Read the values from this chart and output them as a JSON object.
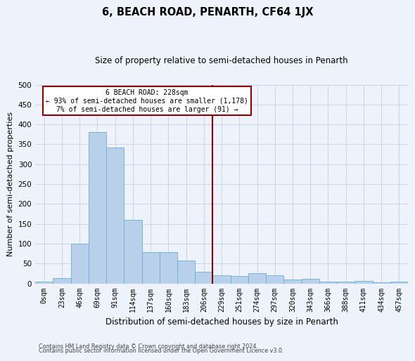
{
  "title": "6, BEACH ROAD, PENARTH, CF64 1JX",
  "subtitle": "Size of property relative to semi-detached houses in Penarth",
  "xlabel": "Distribution of semi-detached houses by size in Penarth",
  "ylabel": "Number of semi-detached properties",
  "bin_labels": [
    "0sqm",
    "23sqm",
    "46sqm",
    "69sqm",
    "91sqm",
    "114sqm",
    "137sqm",
    "160sqm",
    "183sqm",
    "206sqm",
    "229sqm",
    "251sqm",
    "274sqm",
    "297sqm",
    "320sqm",
    "343sqm",
    "366sqm",
    "388sqm",
    "411sqm",
    "434sqm",
    "457sqm"
  ],
  "bar_heights": [
    5,
    13,
    100,
    380,
    342,
    160,
    78,
    78,
    57,
    30,
    20,
    18,
    25,
    20,
    9,
    12,
    5,
    5,
    7,
    2,
    4
  ],
  "bar_color": "#b8d0ea",
  "bar_edge_color": "#6aaed6",
  "vline_color": "#8b0000",
  "annotation_title": "6 BEACH ROAD: 228sqm",
  "annotation_line1": "← 93% of semi-detached houses are smaller (1,178)",
  "annotation_line2": "7% of semi-detached houses are larger (91) →",
  "annotation_box_color": "#ffffff",
  "annotation_box_edge": "#8b0000",
  "ylim": [
    0,
    500
  ],
  "yticks": [
    0,
    50,
    100,
    150,
    200,
    250,
    300,
    350,
    400,
    450,
    500
  ],
  "grid_color": "#c8d4e8",
  "background_color": "#eef2fa",
  "footer1": "Contains HM Land Registry data © Crown copyright and database right 2024.",
  "footer2": "Contains public sector information licensed under the Open Government Licence v3.0."
}
